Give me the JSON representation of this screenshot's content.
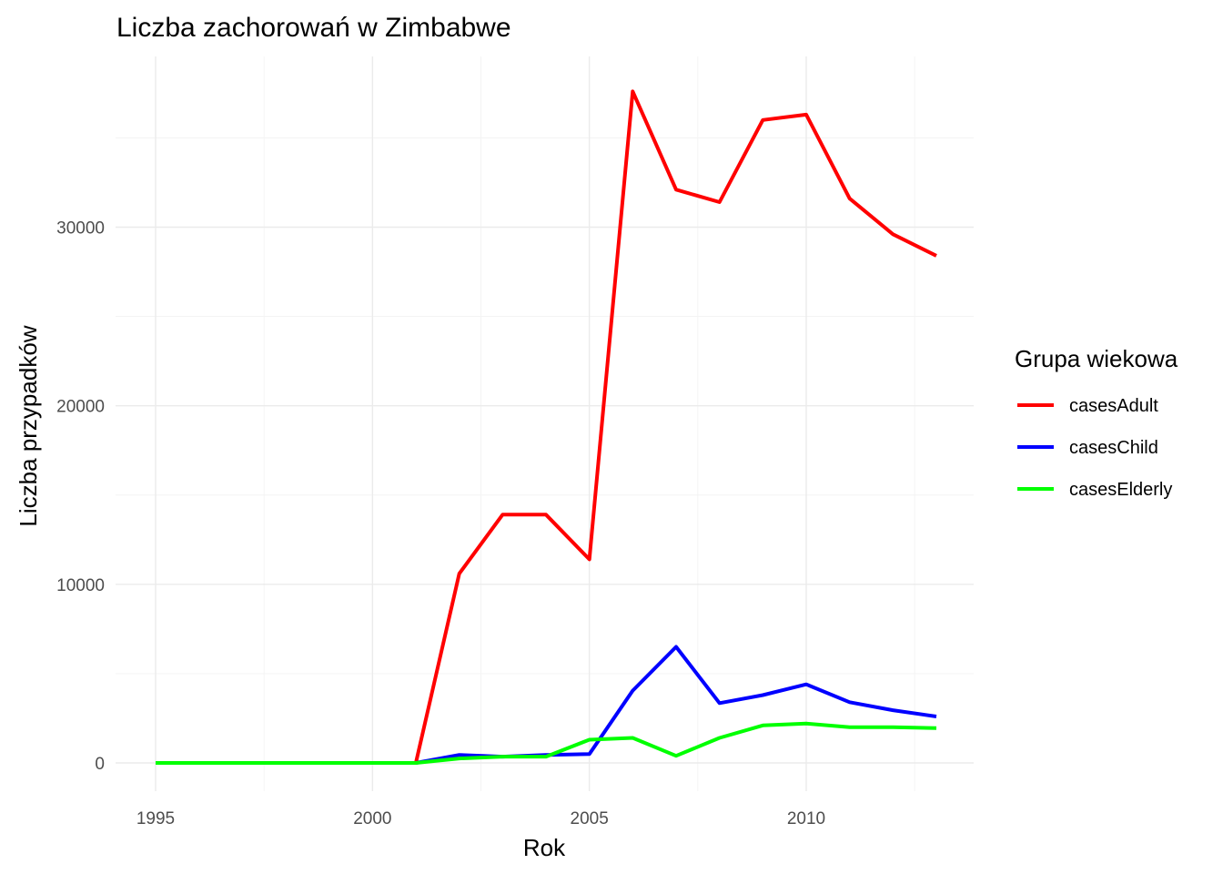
{
  "chart_data": {
    "type": "line",
    "title": "Liczba zachorowań w Zimbabwe",
    "xlabel": "Rok",
    "ylabel": "Liczba przypadków",
    "x": [
      1995,
      1996,
      1997,
      1998,
      1999,
      2000,
      2001,
      2002,
      2003,
      2004,
      2005,
      2006,
      2007,
      2008,
      2009,
      2010,
      2011,
      2012,
      2013
    ],
    "xticks": [
      "1995",
      "2000",
      "2005",
      "2010"
    ],
    "yticks": [
      "0",
      "10000",
      "20000",
      "30000"
    ],
    "xlim": [
      1995,
      2013
    ],
    "ylim": [
      0,
      37600
    ],
    "grid": true,
    "legend": {
      "title": "Grupa wiekowa",
      "position": "right"
    },
    "series": [
      {
        "name": "casesAdult",
        "color": "#ff0000",
        "values": [
          0,
          0,
          0,
          0,
          0,
          0,
          0,
          10600,
          13900,
          13900,
          11400,
          37600,
          32100,
          31400,
          36000,
          36300,
          31600,
          29600,
          28400
        ]
      },
      {
        "name": "casesChild",
        "color": "#0000ff",
        "values": [
          0,
          0,
          0,
          0,
          0,
          0,
          0,
          450,
          350,
          450,
          500,
          4050,
          6500,
          3350,
          3800,
          4400,
          3400,
          2950,
          2600
        ]
      },
      {
        "name": "casesElderly",
        "color": "#00ff00",
        "values": [
          0,
          0,
          0,
          0,
          0,
          0,
          0,
          250,
          350,
          350,
          1300,
          1400,
          400,
          1400,
          2100,
          2200,
          2000,
          2000,
          1950
        ]
      }
    ]
  }
}
